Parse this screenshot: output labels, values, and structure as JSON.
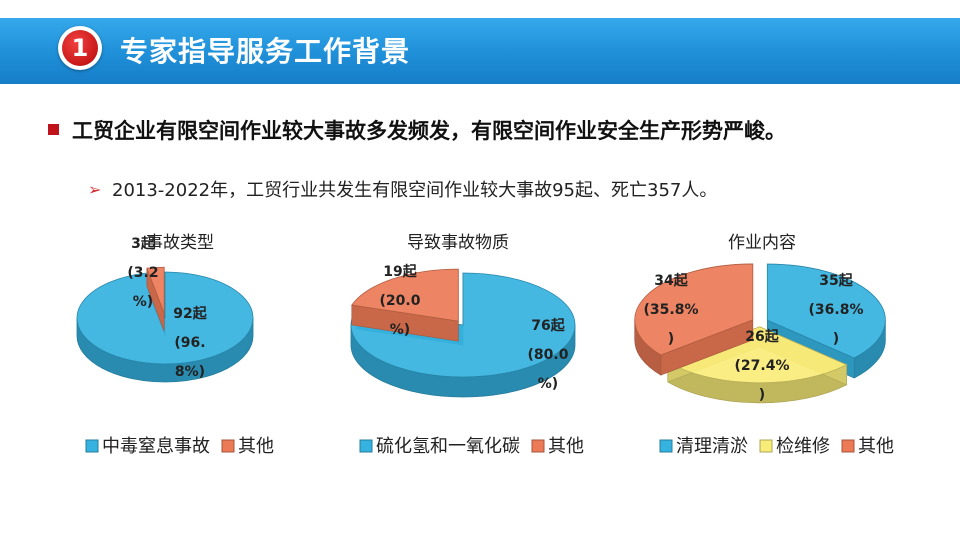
{
  "header": {
    "number": "1",
    "title": "专家指导服务工作背景"
  },
  "bullet": "工贸企业有限空间作业较大事故多发频发，有限空间作业安全生产形势严峻。",
  "sub_bullet": "2013-2022年，工贸行业共发生有限空间作业较大事故95起、死亡357人。",
  "colors": {
    "blue": "#35b2e0",
    "orange": "#ec7a56",
    "yellow": "#f8ec78",
    "header_blue": "#1f8fd8",
    "bullet_red": "#c0121b"
  },
  "chart_data": [
    {
      "type": "pie",
      "title": "事故类型",
      "categories": [
        "中毒窒息事故",
        "其他"
      ],
      "values": [
        92,
        3
      ],
      "percents": [
        96.8,
        3.2
      ],
      "colors": [
        "#35b2e0",
        "#ec7a56"
      ],
      "labels": [
        [
          "92起",
          "(96.",
          "8%)"
        ],
        [
          "3起",
          "(3.2",
          "%)"
        ]
      ],
      "legend": [
        "中毒窒息事故",
        "其他"
      ],
      "legend_position": "bottom"
    },
    {
      "type": "pie",
      "title": "导致事故物质",
      "categories": [
        "硫化氢和一氧化碳",
        "其他"
      ],
      "values": [
        76,
        19
      ],
      "percents": [
        80.0,
        20.0
      ],
      "colors": [
        "#35b2e0",
        "#ec7a56"
      ],
      "labels": [
        [
          "76起",
          "(80.0",
          "%)"
        ],
        [
          "19起",
          "(20.0",
          "%)"
        ]
      ],
      "legend": [
        "硫化氢和一氧化碳",
        "其他"
      ],
      "legend_position": "bottom"
    },
    {
      "type": "pie",
      "title": "作业内容",
      "categories": [
        "清理清淤",
        "检维修",
        "其他"
      ],
      "values": [
        35,
        26,
        34
      ],
      "percents": [
        36.8,
        27.4,
        35.8
      ],
      "colors": [
        "#35b2e0",
        "#f8ec78",
        "#ec7a56"
      ],
      "labels": [
        [
          "35起",
          "(36.8%",
          ")"
        ],
        [
          "26起",
          "(27.4%",
          ")"
        ],
        [
          "34起",
          "(35.8%",
          ")"
        ]
      ],
      "legend": [
        "清理清淤",
        "检维修",
        "其他"
      ],
      "legend_position": "bottom"
    }
  ]
}
